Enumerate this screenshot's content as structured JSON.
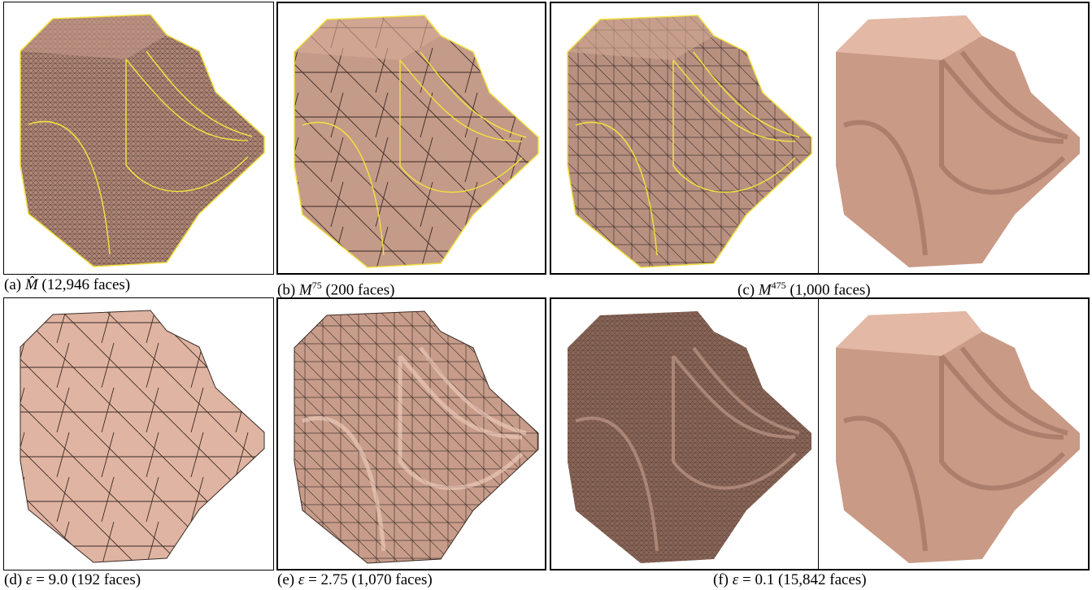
{
  "captions": [
    {
      "label": "(a)",
      "symbol": "M̂",
      "text": "(12,946 faces)"
    },
    {
      "label": "(b)",
      "symbol": "M",
      "superscript": "75",
      "text": "(200 faces)"
    },
    {
      "label": "(c)",
      "symbol": "M",
      "superscript": "475",
      "text": "(1,000 faces)"
    },
    {
      "label": "(d)",
      "symbol": "ε",
      "text": "= 9.0 (192 faces)"
    },
    {
      "label": "(e)",
      "symbol": "ε",
      "text": "= 2.75 (1,070 faces)"
    },
    {
      "label": "(f)",
      "symbol": "ε",
      "text": "= 0.1 (15,842 faces)"
    }
  ]
}
